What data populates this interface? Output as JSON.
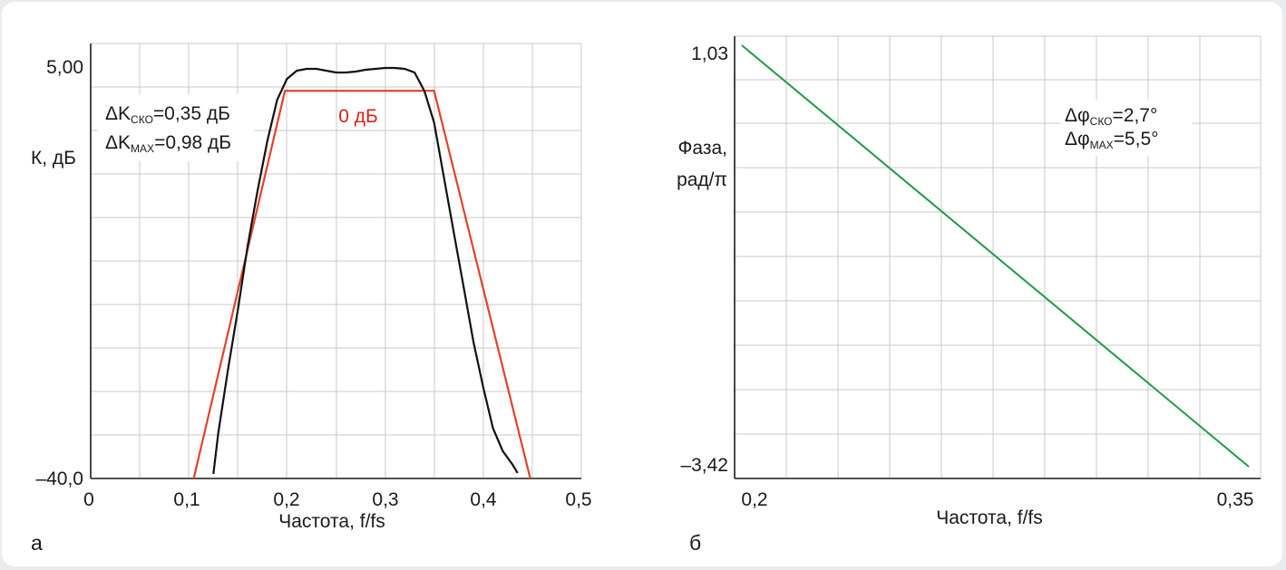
{
  "chart_data": [
    {
      "type": "line",
      "panel_label": "а",
      "xlabel": "Частота, f/fs",
      "ylabel": "К, дБ",
      "xlim": [
        0,
        0.5
      ],
      "ylim": [
        -40.0,
        5.0
      ],
      "x_ticks": [
        "0",
        "0,1",
        "0,2",
        "0,3",
        "0,4",
        "0,5"
      ],
      "y_ticks": [
        "5,00",
        "–40,0"
      ],
      "grid": true,
      "annotations": {
        "dk_sko_prefix": "ΔK",
        "dk_sko_sub": "СКО",
        "dk_sko_value": "=0,35 дБ",
        "dk_max_prefix": "ΔK",
        "dk_max_sub": "MAX",
        "dk_max_value": "=0,98 дБ",
        "zero_label": "0 дБ"
      },
      "colors": {
        "measured": "#111111",
        "template": "#e3412b"
      },
      "series": [
        {
          "id": "measured",
          "x": [
            0.125,
            0.13,
            0.14,
            0.15,
            0.16,
            0.17,
            0.18,
            0.19,
            0.2,
            0.21,
            0.22,
            0.23,
            0.24,
            0.25,
            0.26,
            0.27,
            0.28,
            0.29,
            0.3,
            0.31,
            0.32,
            0.33,
            0.34,
            0.35,
            0.36,
            0.37,
            0.38,
            0.39,
            0.4,
            0.41,
            0.42,
            0.43,
            0.435
          ],
          "values": [
            -39.5,
            -35.0,
            -28.0,
            -21.5,
            -14.5,
            -8.5,
            -3.0,
            1.5,
            3.8,
            4.7,
            4.9,
            4.9,
            4.7,
            4.5,
            4.5,
            4.6,
            4.8,
            4.9,
            5.0,
            5.0,
            4.9,
            4.5,
            2.5,
            -1.0,
            -7.0,
            -13.0,
            -19.0,
            -25.0,
            -30.0,
            -34.5,
            -37.0,
            -38.5,
            -39.4
          ]
        },
        {
          "id": "template",
          "x": [
            0.105,
            0.198,
            0.35,
            0.448
          ],
          "values": [
            -40.0,
            2.5,
            2.5,
            -40.0
          ]
        }
      ]
    },
    {
      "type": "line",
      "panel_label": "б",
      "xlabel": "Частота, f/fs",
      "ylabel_line1": "Фаза,",
      "ylabel_line2": "рад/π",
      "xlim": [
        0.2,
        0.35
      ],
      "ylim": [
        -3.42,
        1.03
      ],
      "x_ticks": [
        "0,2",
        "0,35"
      ],
      "y_ticks": [
        "1,03",
        "–3,42"
      ],
      "grid": true,
      "annotations": {
        "dphi_sko_prefix": "Δφ",
        "dphi_sko_sub": "СКО",
        "dphi_sko_value": "=2,7°",
        "dphi_max_prefix": "Δφ",
        "dphi_max_sub": "MAX",
        "dphi_max_value": "=5,5°"
      },
      "colors": {
        "phase": "#1f9a45"
      },
      "series": [
        {
          "id": "phase",
          "x": [
            0.2,
            0.35
          ],
          "values": [
            1.03,
            -3.42
          ]
        }
      ]
    }
  ]
}
